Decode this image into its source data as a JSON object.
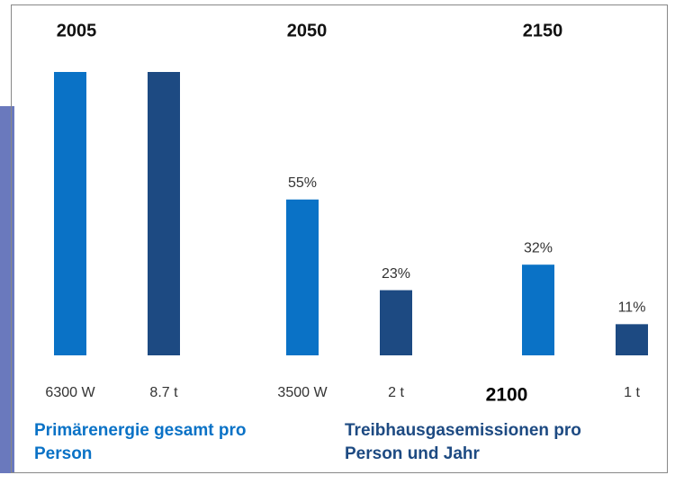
{
  "chart_data": {
    "type": "bar",
    "categories": [
      "2005",
      "2050",
      "2150"
    ],
    "ylim": [
      0,
      100
    ],
    "series": [
      {
        "name": "Primärenergie gesamt pro Person",
        "color": "#0a72c6",
        "values": [
          100,
          55,
          32
        ],
        "value_labels": [
          null,
          "55%",
          "32%"
        ],
        "bar_labels": [
          "6300 W",
          "3500 W",
          null
        ]
      },
      {
        "name": "Treibhausgasemissionen pro Person und Jahr",
        "color": "#1d4a82",
        "values": [
          100,
          23,
          11
        ],
        "value_labels": [
          null,
          "23%",
          "11%"
        ],
        "bar_labels": [
          "8.7 t",
          "2 t",
          "1 t"
        ]
      }
    ],
    "annotation": "2100"
  }
}
